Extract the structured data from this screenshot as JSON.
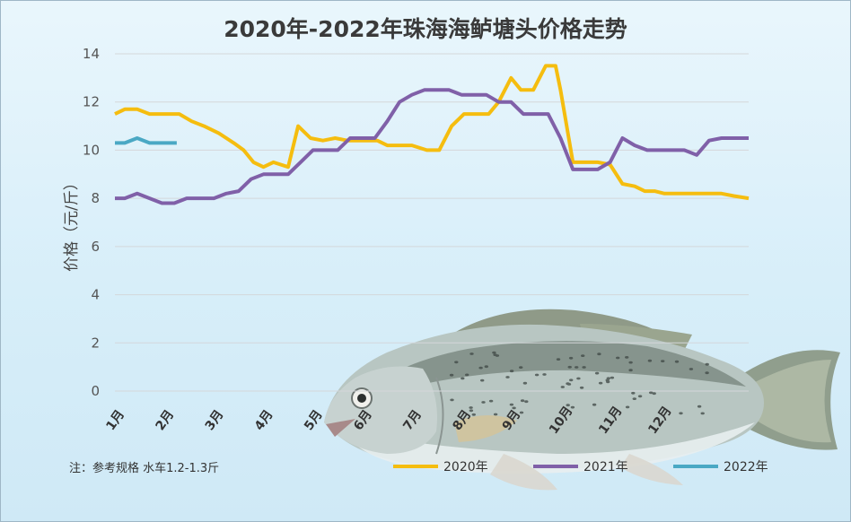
{
  "chart_data": {
    "type": "line",
    "title": "2020年-2022年珠海海鲈塘头价格走势",
    "ylabel": "价格（元/斤）",
    "xlabel": "",
    "ylim": [
      0,
      14
    ],
    "yticks": [
      0,
      2,
      4,
      6,
      8,
      10,
      12,
      14
    ],
    "x_ticks": [
      "1月",
      "2月",
      "3月",
      "4月",
      "5月",
      "6月",
      "7月",
      "8月",
      "9月",
      "10月",
      "11月",
      "12月"
    ],
    "grid": true,
    "legend_position": "bottom",
    "note": "注：参考规格  水车1.2-1.3斤",
    "series": [
      {
        "name": "2020年",
        "color": "#f5bd0f",
        "points": [
          [
            0,
            11.5
          ],
          [
            0.2,
            11.7
          ],
          [
            0.45,
            11.7
          ],
          [
            0.7,
            11.5
          ],
          [
            1.0,
            11.5
          ],
          [
            1.3,
            11.5
          ],
          [
            1.55,
            11.2
          ],
          [
            1.8,
            11.0
          ],
          [
            2.1,
            10.7
          ],
          [
            2.4,
            10.3
          ],
          [
            2.6,
            10.0
          ],
          [
            2.8,
            9.5
          ],
          [
            3.0,
            9.3
          ],
          [
            3.2,
            9.5
          ],
          [
            3.5,
            9.3
          ],
          [
            3.7,
            11.0
          ],
          [
            3.95,
            10.5
          ],
          [
            4.2,
            10.4
          ],
          [
            4.45,
            10.5
          ],
          [
            4.7,
            10.4
          ],
          [
            5.0,
            10.4
          ],
          [
            5.3,
            10.4
          ],
          [
            5.5,
            10.2
          ],
          [
            5.8,
            10.2
          ],
          [
            6.0,
            10.2
          ],
          [
            6.3,
            10.0
          ],
          [
            6.55,
            10.0
          ],
          [
            6.8,
            11.0
          ],
          [
            7.05,
            11.5
          ],
          [
            7.3,
            11.5
          ],
          [
            7.55,
            11.5
          ],
          [
            7.75,
            12.0
          ],
          [
            8.0,
            13.0
          ],
          [
            8.2,
            12.5
          ],
          [
            8.45,
            12.5
          ],
          [
            8.7,
            13.5
          ],
          [
            8.9,
            13.5
          ],
          [
            9.0,
            12.5
          ],
          [
            9.25,
            9.5
          ],
          [
            9.5,
            9.5
          ],
          [
            9.75,
            9.5
          ],
          [
            10.0,
            9.4
          ],
          [
            10.25,
            8.6
          ],
          [
            10.5,
            8.5
          ],
          [
            10.7,
            8.3
          ],
          [
            10.9,
            8.3
          ],
          [
            11.1,
            8.2
          ],
          [
            11.4,
            8.2
          ],
          [
            11.7,
            8.2
          ],
          [
            12.0,
            8.2
          ],
          [
            12.25,
            8.2
          ],
          [
            12.5,
            8.1
          ],
          [
            12.8,
            8.0
          ]
        ]
      },
      {
        "name": "2021年",
        "color": "#8060a8",
        "points": [
          [
            0,
            8.0
          ],
          [
            0.2,
            8.0
          ],
          [
            0.45,
            8.2
          ],
          [
            0.7,
            8.0
          ],
          [
            0.95,
            7.8
          ],
          [
            1.2,
            7.8
          ],
          [
            1.45,
            8.0
          ],
          [
            1.7,
            8.0
          ],
          [
            2.0,
            8.0
          ],
          [
            2.25,
            8.2
          ],
          [
            2.5,
            8.3
          ],
          [
            2.75,
            8.8
          ],
          [
            3.0,
            9.0
          ],
          [
            3.25,
            9.0
          ],
          [
            3.5,
            9.0
          ],
          [
            3.75,
            9.5
          ],
          [
            4.0,
            10.0
          ],
          [
            4.25,
            10.0
          ],
          [
            4.5,
            10.0
          ],
          [
            4.75,
            10.5
          ],
          [
            5.0,
            10.5
          ],
          [
            5.25,
            10.5
          ],
          [
            5.5,
            11.2
          ],
          [
            5.75,
            12.0
          ],
          [
            6.0,
            12.3
          ],
          [
            6.25,
            12.5
          ],
          [
            6.5,
            12.5
          ],
          [
            6.75,
            12.5
          ],
          [
            7.0,
            12.3
          ],
          [
            7.25,
            12.3
          ],
          [
            7.5,
            12.3
          ],
          [
            7.75,
            12.0
          ],
          [
            8.0,
            12.0
          ],
          [
            8.25,
            11.5
          ],
          [
            8.5,
            11.5
          ],
          [
            8.75,
            11.5
          ],
          [
            9.0,
            10.5
          ],
          [
            9.25,
            9.2
          ],
          [
            9.5,
            9.2
          ],
          [
            9.75,
            9.2
          ],
          [
            10.0,
            9.5
          ],
          [
            10.25,
            10.5
          ],
          [
            10.5,
            10.2
          ],
          [
            10.75,
            10.0
          ],
          [
            11.0,
            10.0
          ],
          [
            11.25,
            10.0
          ],
          [
            11.5,
            10.0
          ],
          [
            11.75,
            9.8
          ],
          [
            12.0,
            10.4
          ],
          [
            12.25,
            10.5
          ],
          [
            12.5,
            10.5
          ],
          [
            12.8,
            10.5
          ]
        ]
      },
      {
        "name": "2022年",
        "color": "#4aa8c4",
        "points": [
          [
            0,
            10.3
          ],
          [
            0.2,
            10.3
          ],
          [
            0.45,
            10.5
          ],
          [
            0.7,
            10.3
          ],
          [
            1.0,
            10.3
          ],
          [
            1.25,
            10.3
          ]
        ]
      }
    ]
  }
}
